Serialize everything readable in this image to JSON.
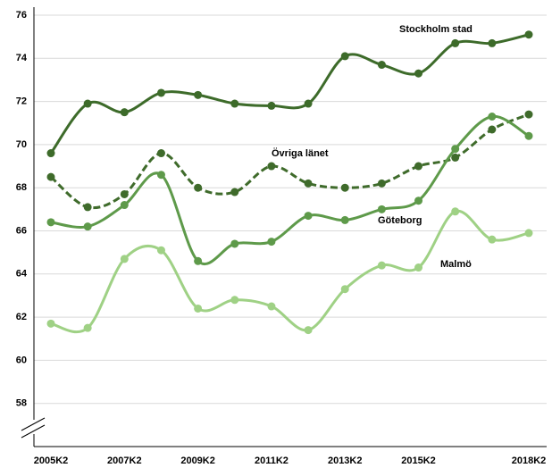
{
  "chart_data": {
    "type": "line",
    "categories": [
      "2005K2",
      null,
      "2007K2",
      null,
      "2009K2",
      null,
      "2011K2",
      null,
      "2013K2",
      null,
      "2015K2",
      null,
      null,
      "2018K2"
    ],
    "series": [
      {
        "name": "Stockholm stad",
        "color": "#3d6b2a",
        "dashed": false,
        "values": [
          69.6,
          71.9,
          71.5,
          72.4,
          72.3,
          71.9,
          71.8,
          71.9,
          74.1,
          73.7,
          73.3,
          74.7,
          74.7,
          75.1
        ]
      },
      {
        "name": "Övriga länet",
        "color": "#3f6b2b",
        "dashed": true,
        "values": [
          68.5,
          67.1,
          67.7,
          69.6,
          68.0,
          67.8,
          69.0,
          68.2,
          68.0,
          68.2,
          69.0,
          69.4,
          70.7,
          71.4
        ]
      },
      {
        "name": "Göteborg",
        "color": "#5e9a4a",
        "dashed": false,
        "values": [
          66.4,
          66.2,
          67.2,
          68.6,
          64.6,
          65.4,
          65.5,
          66.7,
          66.5,
          67.0,
          67.4,
          69.8,
          71.3,
          70.4
        ]
      },
      {
        "name": "Malmö",
        "color": "#9fd185",
        "dashed": false,
        "values": [
          61.7,
          61.5,
          64.7,
          65.1,
          62.4,
          62.8,
          62.5,
          61.4,
          63.3,
          64.4,
          64.3,
          66.9,
          65.6,
          65.9
        ]
      }
    ],
    "ylim": [
      56,
      76
    ],
    "yticks": [
      58,
      60,
      62,
      64,
      66,
      68,
      70,
      72,
      74,
      76
    ],
    "grid": true
  }
}
